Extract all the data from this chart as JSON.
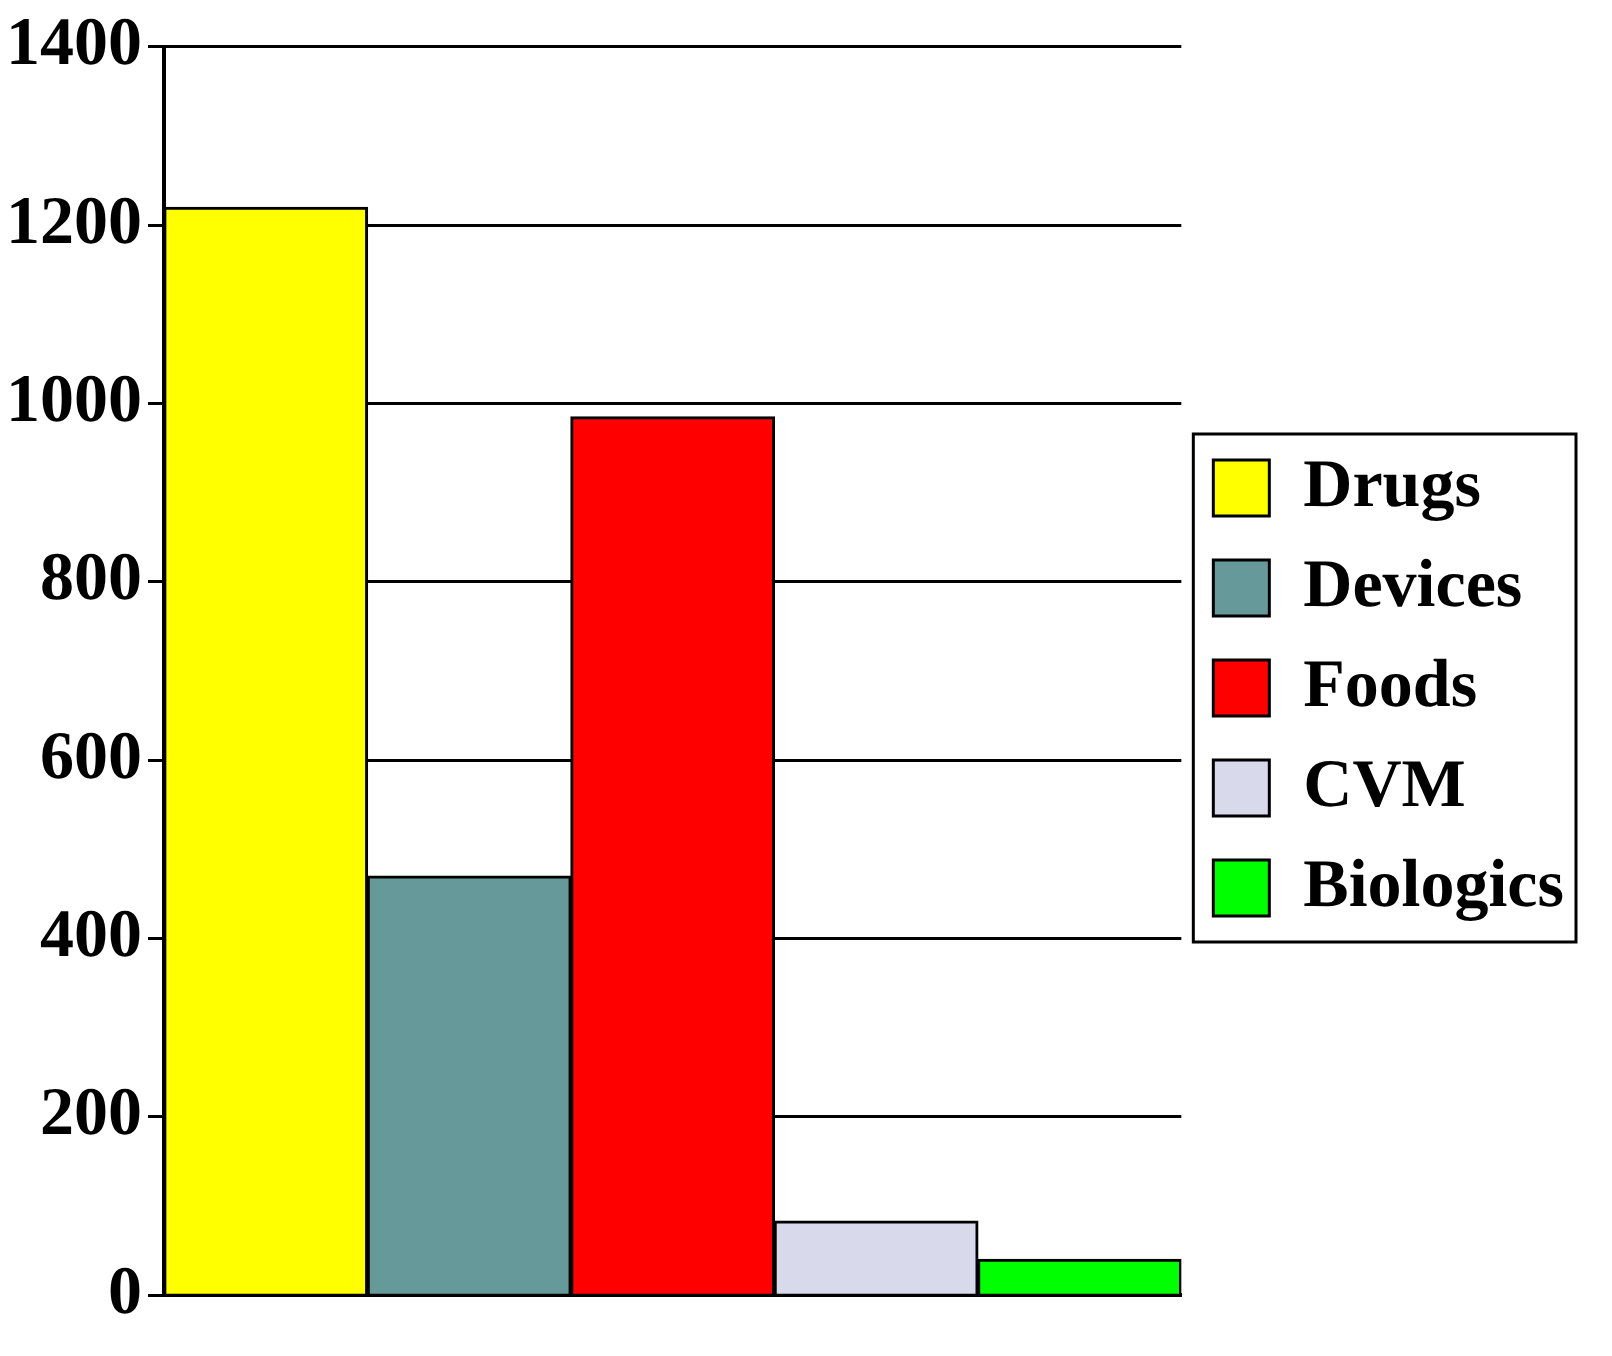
{
  "chart_data": {
    "type": "bar",
    "categories": [
      null
    ],
    "series": [
      {
        "name": "Drugs",
        "color": "#ffff00",
        "values": [
          1220
        ]
      },
      {
        "name": "Devices",
        "color": "#669999",
        "values": [
          470
        ]
      },
      {
        "name": "Foods",
        "color": "#ff0000",
        "values": [
          985
        ]
      },
      {
        "name": "CVM",
        "color": "#d9d9ec",
        "values": [
          83
        ]
      },
      {
        "name": "Biologics",
        "color": "#00ff00",
        "values": [
          40
        ]
      }
    ],
    "ylim": [
      0,
      1400
    ],
    "yticks": [
      0,
      200,
      400,
      600,
      800,
      1000,
      1200,
      1400
    ],
    "grid": "y",
    "legend": "right"
  }
}
